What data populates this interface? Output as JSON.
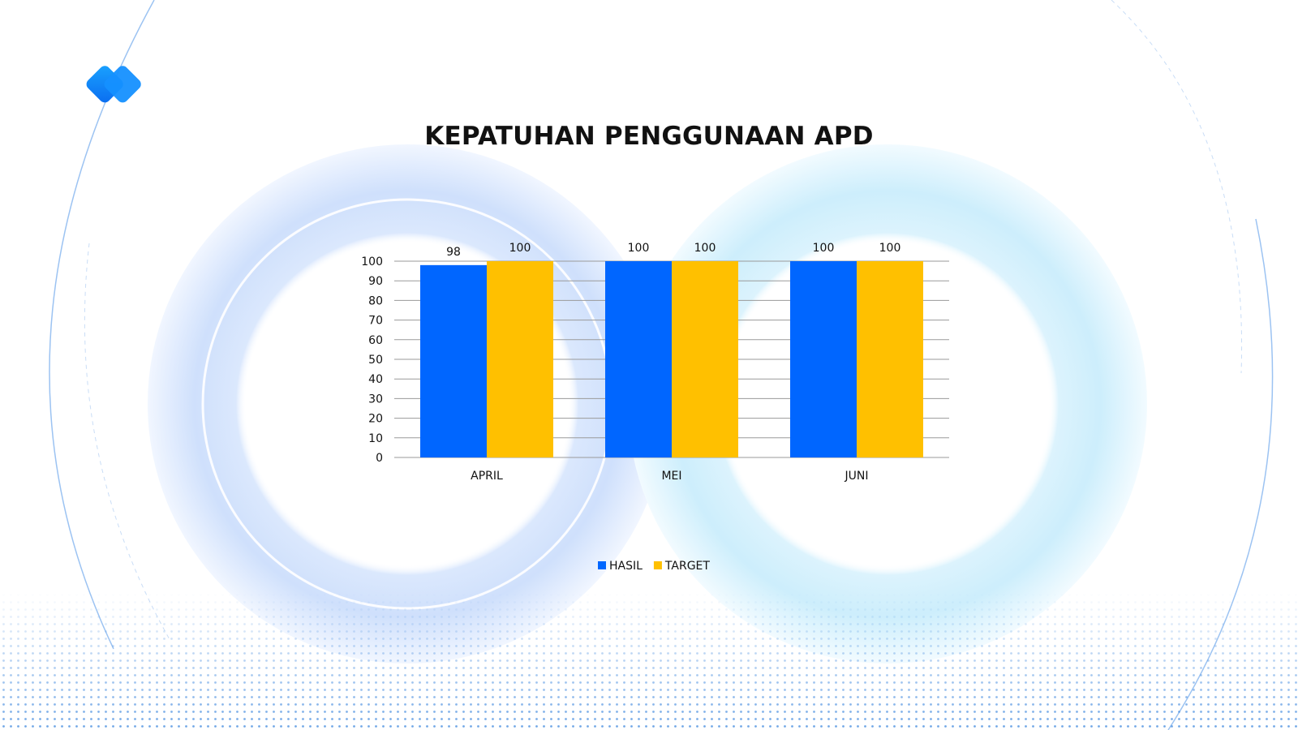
{
  "colors": {
    "hasil": "#0066ff",
    "target": "#ffc000",
    "accent": "#1a8cff"
  },
  "chart_data": {
    "type": "bar",
    "title": "KEPATUHAN PENGGUNAAN APD",
    "categories": [
      "APRIL",
      "MEI",
      "JUNI"
    ],
    "series": [
      {
        "name": "HASIL",
        "values": [
          98,
          100,
          100
        ]
      },
      {
        "name": "TARGET",
        "values": [
          100,
          100,
          100
        ]
      }
    ],
    "ylim": [
      0,
      100
    ],
    "yticks": [
      "0",
      "10",
      "20",
      "30",
      "40",
      "50",
      "60",
      "70",
      "80",
      "90",
      "100"
    ],
    "grid": true,
    "legend_position": "bottom",
    "data_labels": true
  }
}
